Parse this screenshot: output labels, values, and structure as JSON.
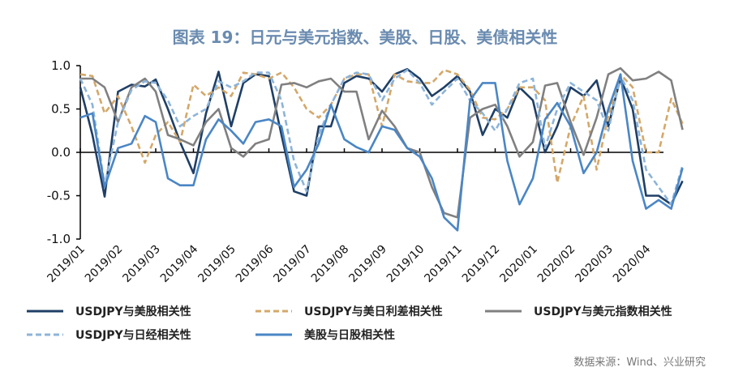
{
  "chart_data": {
    "type": "line",
    "title": "图表 19：日元与美元指数、美股、日股、美债相关性",
    "source": "数据来源：Wind、兴业研究",
    "ylim": [
      -1.0,
      1.0
    ],
    "yticks": [
      "1.0",
      "0.5",
      "0.0",
      "-0.5",
      "-1.0"
    ],
    "ytick_values": [
      1.0,
      0.5,
      0.0,
      -0.5,
      -1.0
    ],
    "xticks": [
      "2019/01",
      "2019/02",
      "2019/03",
      "2019/04",
      "2019/05",
      "2019/06",
      "2019/07",
      "2019/08",
      "2019/09",
      "2019/10",
      "2019/11",
      "2019/12",
      "2020/01",
      "2020/02",
      "2020/03",
      "2020/04"
    ],
    "grid": false,
    "legend_position": "bottom",
    "x": [
      "2019-01-01",
      "2019-01-11",
      "2019-01-21",
      "2019-02-01",
      "2019-02-11",
      "2019-02-21",
      "2019-03-01",
      "2019-03-11",
      "2019-03-21",
      "2019-04-01",
      "2019-04-11",
      "2019-04-21",
      "2019-05-01",
      "2019-05-11",
      "2019-05-21",
      "2019-06-01",
      "2019-06-11",
      "2019-06-21",
      "2019-07-01",
      "2019-07-11",
      "2019-07-21",
      "2019-08-01",
      "2019-08-11",
      "2019-08-21",
      "2019-09-01",
      "2019-09-11",
      "2019-09-21",
      "2019-10-01",
      "2019-10-11",
      "2019-10-21",
      "2019-11-01",
      "2019-11-11",
      "2019-11-21",
      "2019-12-01",
      "2019-12-11",
      "2019-12-21",
      "2020-01-01",
      "2020-01-11",
      "2020-01-21",
      "2020-02-01",
      "2020-02-11",
      "2020-02-21",
      "2020-03-01",
      "2020-03-11",
      "2020-03-21",
      "2020-04-01",
      "2020-04-11",
      "2020-04-21",
      "2020-04-30"
    ],
    "series": [
      {
        "name": "USDJPY与美股相关性",
        "color": "#1f3f66",
        "dash": false,
        "values": [
          0.75,
          0.2,
          -0.51,
          0.7,
          0.78,
          0.76,
          0.84,
          0.5,
          0.12,
          -0.24,
          0.45,
          0.93,
          0.3,
          0.8,
          0.9,
          0.88,
          0.2,
          -0.45,
          -0.5,
          0.3,
          0.3,
          0.8,
          0.88,
          0.85,
          0.7,
          0.9,
          0.96,
          0.85,
          0.65,
          0.75,
          0.88,
          0.7,
          0.2,
          0.5,
          0.4,
          0.75,
          0.6,
          0.0,
          0.3,
          0.75,
          0.65,
          0.83,
          0.3,
          0.86,
          0.5,
          -0.5,
          -0.5,
          -0.6,
          -0.33
        ]
      },
      {
        "name": "USDJPY与美日利差相关性",
        "color": "#d4a86a",
        "dash": true,
        "values": [
          0.9,
          0.88,
          0.45,
          0.65,
          0.3,
          -0.12,
          0.2,
          0.35,
          0.12,
          0.78,
          0.65,
          0.75,
          0.65,
          0.92,
          0.9,
          0.85,
          0.92,
          0.75,
          0.5,
          0.4,
          0.55,
          0.85,
          0.9,
          0.9,
          0.3,
          0.9,
          0.82,
          0.8,
          0.8,
          0.95,
          0.9,
          0.72,
          0.4,
          0.38,
          0.5,
          0.75,
          0.75,
          0.6,
          -0.35,
          0.3,
          0.65,
          -0.2,
          0.42,
          0.9,
          0.75,
          0.0,
          0.0,
          0.62,
          0.33
        ]
      },
      {
        "name": "USDJPY与美元指数相关性",
        "color": "#808080",
        "dash": false,
        "values": [
          0.85,
          0.85,
          0.75,
          0.35,
          0.75,
          0.85,
          0.7,
          0.2,
          0.15,
          0.08,
          0.35,
          0.5,
          0.05,
          -0.05,
          0.1,
          0.15,
          0.78,
          0.8,
          0.75,
          0.82,
          0.85,
          0.7,
          0.7,
          0.15,
          0.48,
          0.3,
          0.05,
          0.0,
          -0.4,
          -0.7,
          -0.75,
          0.4,
          0.5,
          0.55,
          0.3,
          -0.05,
          0.12,
          0.77,
          0.8,
          0.35,
          -0.03,
          0.4,
          0.9,
          0.97,
          0.83,
          0.85,
          0.93,
          0.83,
          0.26
        ]
      },
      {
        "name": "USDJPY与日经相关性",
        "color": "#8db4d9",
        "dash": true,
        "values": [
          0.85,
          0.55,
          -0.38,
          0.35,
          0.72,
          0.82,
          0.8,
          0.6,
          0.3,
          0.42,
          0.5,
          0.82,
          0.75,
          0.82,
          0.92,
          0.92,
          0.6,
          -0.1,
          -0.45,
          0.2,
          0.55,
          0.85,
          0.92,
          0.9,
          0.6,
          0.85,
          0.95,
          0.8,
          0.55,
          0.7,
          0.85,
          0.6,
          0.45,
          0.25,
          0.5,
          0.8,
          0.85,
          0.05,
          0.5,
          0.8,
          0.7,
          0.6,
          0.25,
          0.88,
          0.6,
          -0.2,
          -0.4,
          -0.6,
          -0.15
        ]
      },
      {
        "name": "美股与日股相关性",
        "color": "#4a86c5",
        "dash": false,
        "values": [
          0.4,
          0.45,
          -0.4,
          0.05,
          0.1,
          0.42,
          0.35,
          -0.3,
          -0.38,
          -0.38,
          0.15,
          0.38,
          0.25,
          0.1,
          0.35,
          0.38,
          0.3,
          -0.4,
          -0.2,
          0.1,
          0.55,
          0.15,
          0.06,
          0.0,
          0.3,
          0.26,
          0.05,
          -0.05,
          -0.3,
          -0.75,
          -0.9,
          0.6,
          0.8,
          0.8,
          -0.1,
          -0.6,
          -0.3,
          0.38,
          0.57,
          0.3,
          -0.24,
          0.0,
          0.5,
          0.9,
          -0.1,
          -0.65,
          -0.55,
          -0.65,
          -0.18
        ]
      }
    ]
  }
}
